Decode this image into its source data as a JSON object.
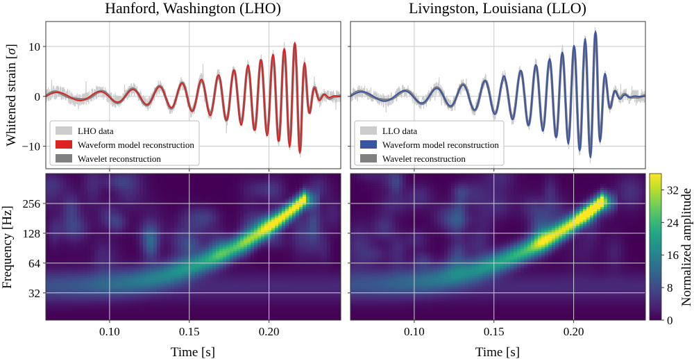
{
  "chart_data": [
    {
      "type": "line",
      "title": "Hanford, Washington (LHO)",
      "xlabel": "",
      "ylabel": "Whitened strain [σ]",
      "xlim": [
        0.06,
        0.245
      ],
      "ylim": [
        -14.5,
        15.0
      ],
      "xticks": [
        0.1,
        0.15,
        0.2
      ],
      "yticks": [
        -10,
        0,
        10
      ],
      "ytick_labels": [
        "−10",
        "0",
        "10"
      ],
      "grid": true,
      "legend_position": "lower-left",
      "series": [
        {
          "name": "LHO data",
          "color": "#cccccc"
        },
        {
          "name": "Waveform model reconstruction",
          "color": "#dd2222"
        },
        {
          "name": "Wavelet reconstruction",
          "color": "#808080"
        }
      ],
      "waveform": {
        "t_merger": 0.22,
        "tau0": 0.17,
        "fmin": 32,
        "fmax": 160,
        "fexp": 0.55,
        "peak_amp": 11.4,
        "envelope_exp": 0.72,
        "baseline_amp": 0.8,
        "ringdown_decay": 0.0045
      }
    },
    {
      "type": "line",
      "title": "Livingston, Louisiana (LLO)",
      "xlabel": "",
      "ylabel": "",
      "xlim": [
        0.06,
        0.245
      ],
      "ylim": [
        -14.5,
        15.0
      ],
      "xticks": [
        0.1,
        0.15,
        0.2
      ],
      "yticks": [
        -10,
        0,
        10
      ],
      "grid": true,
      "legend_position": "lower-left",
      "series": [
        {
          "name": "LLO data",
          "color": "#cccccc"
        },
        {
          "name": "Waveform model reconstruction",
          "color": "#3a55a3"
        },
        {
          "name": "Wavelet reconstruction",
          "color": "#808080"
        }
      ],
      "waveform": {
        "t_merger": 0.215,
        "tau0": 0.165,
        "fmin": 32,
        "fmax": 160,
        "fexp": 0.55,
        "peak_amp": 13.2,
        "envelope_exp": 0.72,
        "baseline_amp": 0.9,
        "ringdown_decay": 0.0045
      }
    },
    {
      "type": "heatmap",
      "xlabel": "Time [s]",
      "ylabel": "Frequency [Hz]",
      "xlim": [
        0.06,
        0.245
      ],
      "ylim_hz": [
        17,
        512
      ],
      "yscale": "log2",
      "xticks": [
        0.1,
        0.15,
        0.2
      ],
      "xtick_labels": [
        "0.10",
        "0.15",
        "0.20"
      ],
      "yticks": [
        32,
        64,
        128,
        256
      ],
      "colormap": "viridis",
      "grid": true,
      "track": {
        "t_merger": 0.222,
        "f_start": 38,
        "f_end": 280,
        "peak": 34
      }
    },
    {
      "type": "heatmap",
      "xlabel": "Time [s]",
      "ylabel": "",
      "xlim": [
        0.06,
        0.245
      ],
      "ylim_hz": [
        17,
        512
      ],
      "yscale": "log2",
      "xticks": [
        0.1,
        0.15,
        0.2
      ],
      "xtick_labels": [
        "0.10",
        "0.15",
        "0.20"
      ],
      "yticks": [
        32,
        64,
        128,
        256
      ],
      "colormap": "viridis",
      "grid": true,
      "track": {
        "t_merger": 0.218,
        "f_start": 40,
        "f_end": 270,
        "peak": 36
      }
    }
  ],
  "colorbar": {
    "label": "Normalized amplitude",
    "range": [
      0,
      36
    ],
    "ticks": [
      0,
      8,
      16,
      24,
      32
    ],
    "colormap": "viridis"
  }
}
